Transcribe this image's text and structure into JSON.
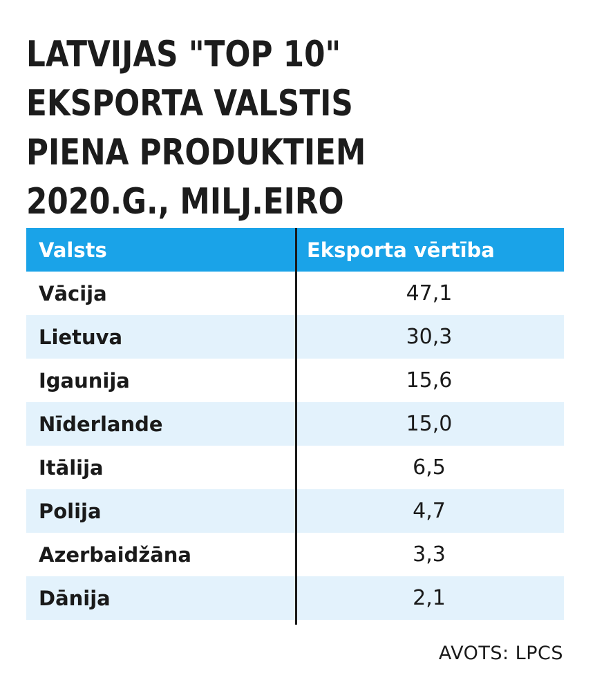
{
  "title_lines": [
    "LATVIJAS \"TOP 10\"",
    "EKSPORTA VALSTIS",
    "PIENA PRODUKTIEM",
    "2020.G., MILJ.EIRO"
  ],
  "colors": {
    "header_bg": "#1aa3e8",
    "stripe_bg": "#e3f2fc",
    "row_bg": "#ffffff",
    "text": "#1a1a1a",
    "header_text": "#ffffff"
  },
  "chart_data": {
    "type": "table",
    "columns": [
      "Valsts",
      "Eksporta vērtība"
    ],
    "rows": [
      {
        "country": "Vācija",
        "value": "47,1"
      },
      {
        "country": "Lietuva",
        "value": "30,3"
      },
      {
        "country": "Igaunija",
        "value": "15,6"
      },
      {
        "country": "Nīderlande",
        "value": "15,0"
      },
      {
        "country": "Itālija",
        "value": "6,5"
      },
      {
        "country": "Polija",
        "value": "4,7"
      },
      {
        "country": "Azerbaidžāna",
        "value": "3,3"
      },
      {
        "country": "Dānija",
        "value": "2,1"
      }
    ]
  },
  "source": "AVOTS: LPCS"
}
